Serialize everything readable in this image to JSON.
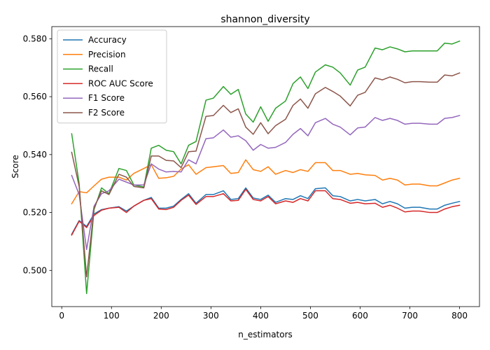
{
  "chart_data": {
    "type": "line",
    "title": "shannon_diversity",
    "xlabel": "n_estimators",
    "ylabel": "Score",
    "xlim": [
      -20,
      840
    ],
    "ylim": [
      0.4875,
      0.5842
    ],
    "xticks": [
      0,
      100,
      200,
      300,
      400,
      500,
      600,
      700,
      800
    ],
    "yticks": [
      0.5,
      0.52,
      0.54,
      0.56,
      0.58
    ],
    "ytick_labels": [
      "0.500",
      "0.520",
      "0.540",
      "0.560",
      "0.580"
    ],
    "legend_position": "top-left",
    "x": [
      20,
      35,
      50,
      65,
      80,
      95,
      115,
      130,
      145,
      165,
      180,
      195,
      210,
      225,
      240,
      255,
      270,
      290,
      305,
      325,
      340,
      355,
      370,
      385,
      400,
      415,
      430,
      450,
      465,
      480,
      495,
      510,
      530,
      545,
      560,
      580,
      595,
      610,
      630,
      645,
      660,
      675,
      690,
      705,
      720,
      740,
      755,
      770,
      785,
      800
    ],
    "series": [
      {
        "name": "Accuracy",
        "color": "#1f77b4",
        "values": [
          0.5125,
          0.5172,
          0.5152,
          0.5195,
          0.521,
          0.5215,
          0.522,
          0.5205,
          0.5222,
          0.5242,
          0.5252,
          0.5215,
          0.5215,
          0.5222,
          0.5245,
          0.5265,
          0.5232,
          0.5262,
          0.5262,
          0.5275,
          0.5245,
          0.5248,
          0.5285,
          0.525,
          0.5245,
          0.526,
          0.5235,
          0.5248,
          0.5245,
          0.5258,
          0.5248,
          0.5282,
          0.5285,
          0.5258,
          0.5255,
          0.524,
          0.5245,
          0.524,
          0.5245,
          0.523,
          0.5238,
          0.523,
          0.5215,
          0.5218,
          0.5218,
          0.5212,
          0.5212,
          0.5225,
          0.5232,
          0.5238
        ]
      },
      {
        "name": "Precision",
        "color": "#ff7f0e",
        "values": [
          0.523,
          0.5272,
          0.5268,
          0.5292,
          0.5315,
          0.5322,
          0.5322,
          0.5312,
          0.5335,
          0.5352,
          0.5365,
          0.5318,
          0.532,
          0.5325,
          0.535,
          0.5365,
          0.5332,
          0.5355,
          0.5358,
          0.5362,
          0.5335,
          0.5338,
          0.5382,
          0.5348,
          0.5342,
          0.5358,
          0.5332,
          0.5345,
          0.5338,
          0.5348,
          0.5342,
          0.5372,
          0.5372,
          0.5345,
          0.5345,
          0.5332,
          0.5335,
          0.533,
          0.5328,
          0.5312,
          0.5318,
          0.5312,
          0.5295,
          0.5298,
          0.5298,
          0.5292,
          0.5292,
          0.5302,
          0.5312,
          0.5318
        ]
      },
      {
        "name": "Recall",
        "color": "#2ca02c",
        "values": [
          0.5472,
          0.53,
          0.492,
          0.521,
          0.5285,
          0.5265,
          0.5352,
          0.5345,
          0.5295,
          0.5288,
          0.5422,
          0.5432,
          0.5415,
          0.541,
          0.5368,
          0.5432,
          0.5445,
          0.5588,
          0.5595,
          0.5635,
          0.5608,
          0.5625,
          0.554,
          0.5512,
          0.5565,
          0.5515,
          0.556,
          0.5585,
          0.5645,
          0.5668,
          0.5628,
          0.5685,
          0.571,
          0.5702,
          0.5682,
          0.564,
          0.5692,
          0.5702,
          0.5768,
          0.5762,
          0.5772,
          0.5765,
          0.5755,
          0.5758,
          0.5758,
          0.5758,
          0.5758,
          0.5785,
          0.5782,
          0.5792
        ]
      },
      {
        "name": "ROC AUC Score",
        "color": "#d62728",
        "values": [
          0.5122,
          0.517,
          0.5148,
          0.519,
          0.5208,
          0.5215,
          0.5218,
          0.52,
          0.5222,
          0.5242,
          0.5248,
          0.5212,
          0.521,
          0.5218,
          0.5242,
          0.526,
          0.5228,
          0.5255,
          0.5255,
          0.5265,
          0.524,
          0.5242,
          0.528,
          0.5245,
          0.524,
          0.5255,
          0.523,
          0.524,
          0.5235,
          0.5248,
          0.524,
          0.5275,
          0.5275,
          0.5248,
          0.5245,
          0.5232,
          0.5235,
          0.523,
          0.5232,
          0.5218,
          0.5225,
          0.5215,
          0.5202,
          0.5205,
          0.5205,
          0.52,
          0.52,
          0.5212,
          0.522,
          0.5225
        ]
      },
      {
        "name": "F1 Score",
        "color": "#9467bd",
        "values": [
          0.5328,
          0.5262,
          0.5072,
          0.5222,
          0.5265,
          0.5275,
          0.5315,
          0.5305,
          0.5295,
          0.5295,
          0.5368,
          0.535,
          0.534,
          0.5342,
          0.534,
          0.5382,
          0.5368,
          0.5455,
          0.5458,
          0.5485,
          0.546,
          0.5465,
          0.5448,
          0.5415,
          0.5435,
          0.5422,
          0.5425,
          0.5442,
          0.547,
          0.549,
          0.5465,
          0.551,
          0.5525,
          0.5505,
          0.5495,
          0.5468,
          0.5492,
          0.5495,
          0.5528,
          0.5518,
          0.5525,
          0.5518,
          0.5505,
          0.5508,
          0.5508,
          0.5505,
          0.5505,
          0.5525,
          0.5528,
          0.5535
        ]
      },
      {
        "name": "F2 Score",
        "color": "#8c564b",
        "values": [
          0.5408,
          0.529,
          0.4978,
          0.5215,
          0.5275,
          0.5262,
          0.5332,
          0.5322,
          0.529,
          0.5285,
          0.5395,
          0.5395,
          0.538,
          0.5378,
          0.5355,
          0.541,
          0.5412,
          0.5532,
          0.5535,
          0.557,
          0.5545,
          0.5558,
          0.5495,
          0.547,
          0.551,
          0.5472,
          0.55,
          0.5522,
          0.557,
          0.5592,
          0.556,
          0.561,
          0.5632,
          0.5618,
          0.5602,
          0.5568,
          0.5605,
          0.5615,
          0.5665,
          0.5658,
          0.5668,
          0.566,
          0.5648,
          0.5652,
          0.5652,
          0.565,
          0.565,
          0.5675,
          0.5672,
          0.5682
        ]
      }
    ]
  }
}
